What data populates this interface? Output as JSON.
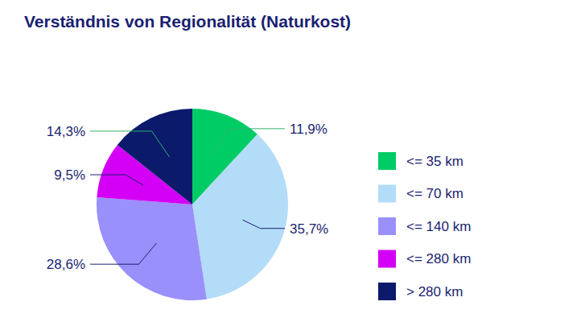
{
  "chart_data": {
    "type": "pie",
    "title": "Verständnis von Regionalität (Naturkost)",
    "categories": [
      "<= 35 km",
      "<= 70 km",
      "<= 140 km",
      "<= 280 km",
      "> 280 km"
    ],
    "values": [
      11.9,
      35.7,
      28.6,
      9.5,
      14.3
    ],
    "value_labels": [
      "11,9%",
      "35,7%",
      "28,6%",
      "9,5%",
      "14,3%"
    ],
    "colors": [
      "#00cc66",
      "#b3dcf8",
      "#9a90fb",
      "#d400f5",
      "#0b1a6b"
    ],
    "data_labels": true,
    "legend": "right"
  }
}
